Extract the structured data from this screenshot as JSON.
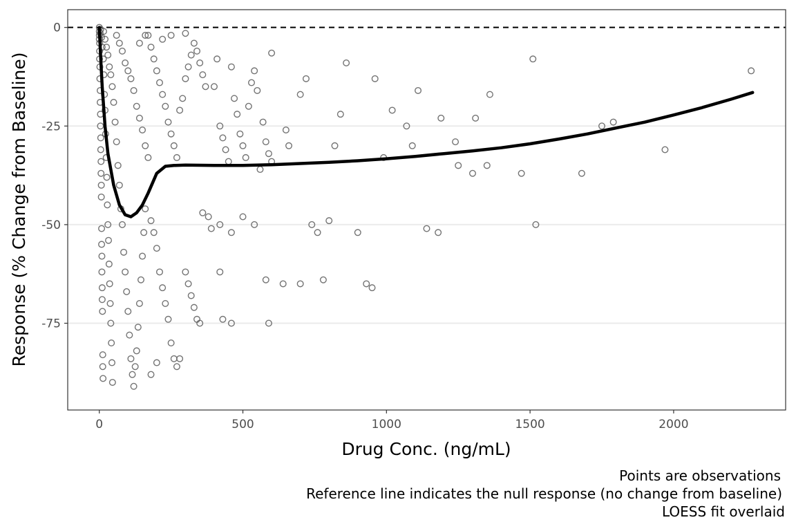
{
  "chart_data": {
    "type": "scatter",
    "xlabel": "Drug Conc. (ng/mL)",
    "ylabel": "Response (% Change from Baseline)",
    "xlim": [
      -110,
      2390
    ],
    "ylim": [
      -97,
      4.5
    ],
    "x_ticks": [
      0,
      500,
      1000,
      1500,
      2000
    ],
    "y_ticks": [
      0,
      -25,
      -50,
      -75
    ],
    "x_tick_labels": [
      "0",
      "500",
      "1000",
      "1500",
      "2000"
    ],
    "y_tick_labels": [
      "0",
      "-25",
      "-50",
      "-75"
    ],
    "gridlines": "horizontal major",
    "reference_line": {
      "y": 0,
      "style": "dashed"
    },
    "colors": {
      "points": "#5a5a5a",
      "fit": "#000000",
      "grid": "#ebebeb",
      "panel_border": "#333333"
    },
    "fit": {
      "method": "LOESS",
      "x": [
        0,
        2,
        5,
        10,
        20,
        30,
        50,
        70,
        90,
        110,
        130,
        150,
        170,
        200,
        230,
        260,
        300,
        400,
        500,
        600,
        700,
        800,
        900,
        1000,
        1100,
        1200,
        1300,
        1400,
        1500,
        1600,
        1700,
        1800,
        1900,
        2000,
        2100,
        2200,
        2275
      ],
      "y": [
        0,
        -3,
        -8,
        -15,
        -25,
        -32,
        -40,
        -45,
        -47.5,
        -48,
        -47,
        -45,
        -42,
        -37,
        -35.2,
        -35,
        -34.9,
        -35,
        -35,
        -34.8,
        -34.5,
        -34.2,
        -33.8,
        -33.3,
        -32.7,
        -32,
        -31.3,
        -30.5,
        -29.5,
        -28.3,
        -27,
        -25.5,
        -24,
        -22.2,
        -20.3,
        -18.2,
        -16.5
      ]
    },
    "series": [
      {
        "name": "Observations",
        "points": [
          [
            0,
            0
          ],
          [
            0,
            -1
          ],
          [
            0,
            -2
          ],
          [
            0,
            -3
          ],
          [
            1,
            -4
          ],
          [
            1,
            -6
          ],
          [
            1,
            -8
          ],
          [
            2,
            -10
          ],
          [
            2,
            -13
          ],
          [
            3,
            -16
          ],
          [
            3,
            -19
          ],
          [
            4,
            -22
          ],
          [
            4,
            -25
          ],
          [
            5,
            -28
          ],
          [
            5,
            -31
          ],
          [
            6,
            -34
          ],
          [
            6,
            -37
          ],
          [
            7,
            -40
          ],
          [
            7,
            -43
          ],
          [
            8,
            -51
          ],
          [
            8,
            -55
          ],
          [
            9,
            -58
          ],
          [
            9,
            -62
          ],
          [
            10,
            -66
          ],
          [
            10,
            -69
          ],
          [
            11,
            -72
          ],
          [
            12,
            -83
          ],
          [
            12,
            -86
          ],
          [
            13,
            -89
          ],
          [
            3,
            -1.5
          ],
          [
            5,
            -0.5
          ],
          [
            8,
            -2.5
          ],
          [
            10,
            -5
          ],
          [
            14,
            -8
          ],
          [
            16,
            -12
          ],
          [
            18,
            -17
          ],
          [
            20,
            -21
          ],
          [
            22,
            -27
          ],
          [
            24,
            -33
          ],
          [
            26,
            -38
          ],
          [
            28,
            -45
          ],
          [
            30,
            -50
          ],
          [
            32,
            -54
          ],
          [
            34,
            -60
          ],
          [
            36,
            -65
          ],
          [
            38,
            -70
          ],
          [
            40,
            -75
          ],
          [
            42,
            -80
          ],
          [
            44,
            -85
          ],
          [
            46,
            -90
          ],
          [
            15,
            -1
          ],
          [
            20,
            -3
          ],
          [
            25,
            -5
          ],
          [
            30,
            -7
          ],
          [
            35,
            -10
          ],
          [
            40,
            -12
          ],
          [
            45,
            -15
          ],
          [
            50,
            -19
          ],
          [
            55,
            -24
          ],
          [
            60,
            -29
          ],
          [
            65,
            -35
          ],
          [
            70,
            -40
          ],
          [
            75,
            -46
          ],
          [
            80,
            -50
          ],
          [
            85,
            -57
          ],
          [
            90,
            -62
          ],
          [
            95,
            -67
          ],
          [
            100,
            -72
          ],
          [
            105,
            -78
          ],
          [
            110,
            -84
          ],
          [
            115,
            -88
          ],
          [
            120,
            -91
          ],
          [
            125,
            -86
          ],
          [
            130,
            -82
          ],
          [
            135,
            -76
          ],
          [
            140,
            -70
          ],
          [
            145,
            -64
          ],
          [
            150,
            -58
          ],
          [
            155,
            -52
          ],
          [
            160,
            -46
          ],
          [
            60,
            -2
          ],
          [
            70,
            -4
          ],
          [
            80,
            -6
          ],
          [
            90,
            -9
          ],
          [
            100,
            -11
          ],
          [
            110,
            -13
          ],
          [
            120,
            -16
          ],
          [
            130,
            -20
          ],
          [
            140,
            -23
          ],
          [
            150,
            -26
          ],
          [
            160,
            -30
          ],
          [
            170,
            -33
          ],
          [
            180,
            -49
          ],
          [
            190,
            -52
          ],
          [
            200,
            -56
          ],
          [
            210,
            -62
          ],
          [
            220,
            -66
          ],
          [
            230,
            -70
          ],
          [
            240,
            -74
          ],
          [
            250,
            -80
          ],
          [
            260,
            -84
          ],
          [
            270,
            -86
          ],
          [
            280,
            -84
          ],
          [
            180,
            -88
          ],
          [
            200,
            -85
          ],
          [
            170,
            -2
          ],
          [
            180,
            -5
          ],
          [
            190,
            -8
          ],
          [
            200,
            -11
          ],
          [
            210,
            -14
          ],
          [
            220,
            -17
          ],
          [
            230,
            -20
          ],
          [
            240,
            -24
          ],
          [
            250,
            -27
          ],
          [
            260,
            -30
          ],
          [
            270,
            -33
          ],
          [
            280,
            -21
          ],
          [
            290,
            -18
          ],
          [
            300,
            -13
          ],
          [
            310,
            -10
          ],
          [
            320,
            -7
          ],
          [
            330,
            -4
          ],
          [
            340,
            -6
          ],
          [
            350,
            -9
          ],
          [
            360,
            -12
          ],
          [
            370,
            -15
          ],
          [
            380,
            -48
          ],
          [
            390,
            -51
          ],
          [
            300,
            -62
          ],
          [
            310,
            -65
          ],
          [
            320,
            -68
          ],
          [
            330,
            -71
          ],
          [
            340,
            -74
          ],
          [
            350,
            -75
          ],
          [
            360,
            -47
          ],
          [
            400,
            -15
          ],
          [
            410,
            -8
          ],
          [
            420,
            -25
          ],
          [
            430,
            -28
          ],
          [
            440,
            -31
          ],
          [
            450,
            -34
          ],
          [
            460,
            -10
          ],
          [
            470,
            -18
          ],
          [
            480,
            -22
          ],
          [
            490,
            -27
          ],
          [
            500,
            -30
          ],
          [
            510,
            -33
          ],
          [
            520,
            -20
          ],
          [
            530,
            -14
          ],
          [
            540,
            -11
          ],
          [
            550,
            -16
          ],
          [
            560,
            -36
          ],
          [
            570,
            -24
          ],
          [
            580,
            -29
          ],
          [
            590,
            -32
          ],
          [
            600,
            -34
          ],
          [
            420,
            -50
          ],
          [
            460,
            -52
          ],
          [
            500,
            -48
          ],
          [
            540,
            -50
          ],
          [
            580,
            -64
          ],
          [
            590,
            -75
          ],
          [
            430,
            -74
          ],
          [
            460,
            -75
          ],
          [
            420,
            -62
          ],
          [
            650,
            -26
          ],
          [
            660,
            -30
          ],
          [
            700,
            -17
          ],
          [
            720,
            -13
          ],
          [
            740,
            -50
          ],
          [
            760,
            -52
          ],
          [
            780,
            -64
          ],
          [
            800,
            -49
          ],
          [
            820,
            -30
          ],
          [
            840,
            -22
          ],
          [
            860,
            -9
          ],
          [
            900,
            -52
          ],
          [
            930,
            -65
          ],
          [
            960,
            -13
          ],
          [
            990,
            -33
          ],
          [
            1020,
            -21
          ],
          [
            1070,
            -25
          ],
          [
            1090,
            -30
          ],
          [
            1110,
            -16
          ],
          [
            1140,
            -51
          ],
          [
            1180,
            -52
          ],
          [
            1190,
            -23
          ],
          [
            1240,
            -29
          ],
          [
            1250,
            -35
          ],
          [
            1300,
            -37
          ],
          [
            1310,
            -23
          ],
          [
            1350,
            -35
          ],
          [
            1360,
            -17
          ],
          [
            1470,
            -37
          ],
          [
            1510,
            -8
          ],
          [
            1520,
            -50
          ],
          [
            1680,
            -37
          ],
          [
            1750,
            -25
          ],
          [
            1790,
            -24
          ],
          [
            1970,
            -31
          ],
          [
            2270,
            -11
          ],
          [
            700,
            -65
          ],
          [
            640,
            -65
          ],
          [
            950,
            -66
          ],
          [
            600,
            -6.5
          ],
          [
            250,
            -2
          ],
          [
            300,
            -1.5
          ],
          [
            220,
            -3
          ],
          [
            160,
            -2
          ],
          [
            140,
            -4
          ]
        ]
      }
    ]
  },
  "captions": {
    "line1": "Points are observations",
    "line2": "Reference line indicates the null response (no change from baseline)",
    "line3": "LOESS fit overlaid"
  }
}
